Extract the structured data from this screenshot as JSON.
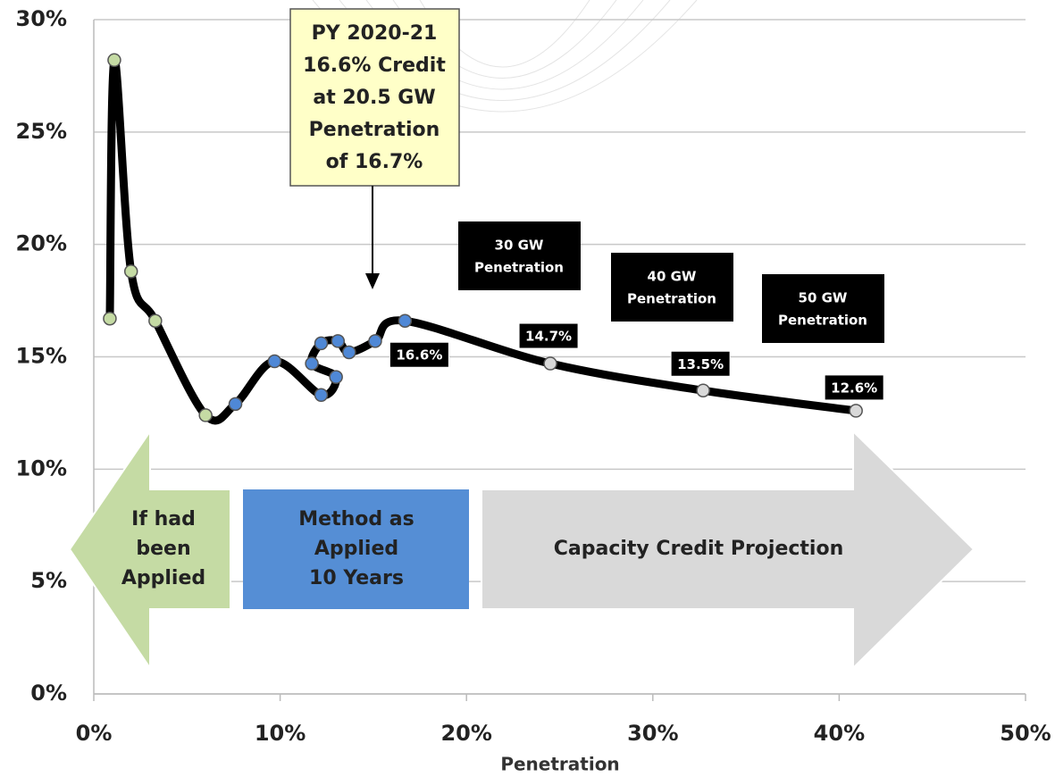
{
  "chart_data": {
    "type": "line",
    "xlabel": "Penetration",
    "x": [
      0.86,
      1.1,
      2.0,
      3.3,
      6.0,
      7.6,
      9.7,
      12.2,
      13.0,
      11.7,
      12.2,
      13.1,
      13.7,
      15.1,
      16.7,
      24.5,
      32.7,
      40.9
    ],
    "values": [
      16.7,
      28.2,
      18.8,
      16.6,
      12.4,
      12.9,
      14.8,
      13.3,
      14.1,
      14.7,
      15.6,
      15.7,
      15.2,
      15.7,
      16.6,
      14.7,
      13.5,
      12.6
    ],
    "value_labels": [
      null,
      null,
      null,
      null,
      null,
      null,
      null,
      null,
      null,
      null,
      null,
      null,
      null,
      null,
      "16.6%",
      "14.7%",
      "13.5%",
      "12.6%"
    ],
    "line_color": "#000000",
    "marker_colors": [
      "#c5dba4",
      "#c5dba4",
      "#c5dba4",
      "#c5dba4",
      "#c5dba4",
      "#4f88d6",
      "#4f88d6",
      "#4f88d6",
      "#4f88d6",
      "#4f88d6",
      "#4f88d6",
      "#4f88d6",
      "#4f88d6",
      "#4f88d6",
      "#4f88d6",
      "#d9d9d9",
      "#d9d9d9",
      "#d9d9d9"
    ],
    "xlim": [
      0,
      50
    ],
    "xticks": [
      {
        "value": 0,
        "label": "0%"
      },
      {
        "value": 10,
        "label": "10%"
      },
      {
        "value": 20,
        "label": "20%"
      },
      {
        "value": 30,
        "label": "30%"
      },
      {
        "value": 40,
        "label": "40%"
      },
      {
        "value": 50,
        "label": "50%"
      }
    ],
    "ylim": [
      0,
      30
    ],
    "yticks": [
      {
        "value": 0,
        "label": "0%"
      },
      {
        "value": 5,
        "label": "5%"
      },
      {
        "value": 10,
        "label": "10%"
      },
      {
        "value": 15,
        "label": "15%"
      },
      {
        "value": 20,
        "label": "20%"
      },
      {
        "value": 25,
        "label": "25%"
      },
      {
        "value": 30,
        "label": "30%"
      }
    ],
    "grid": true,
    "callout": [
      "PY 2020-21",
      "16.6% Credit",
      "at 20.5 GW",
      "Penetration",
      "of 16.7%"
    ],
    "boxes": [
      [
        "30 GW",
        "Penetration"
      ],
      [
        "40 GW",
        "Penetration"
      ],
      [
        "50 GW",
        "Penetration"
      ]
    ],
    "arrows": [
      [
        "If had",
        "been",
        "Applied"
      ],
      [
        "Method as",
        "Applied",
        "10 Years"
      ],
      [
        "Capacity Credit Projection"
      ]
    ]
  }
}
